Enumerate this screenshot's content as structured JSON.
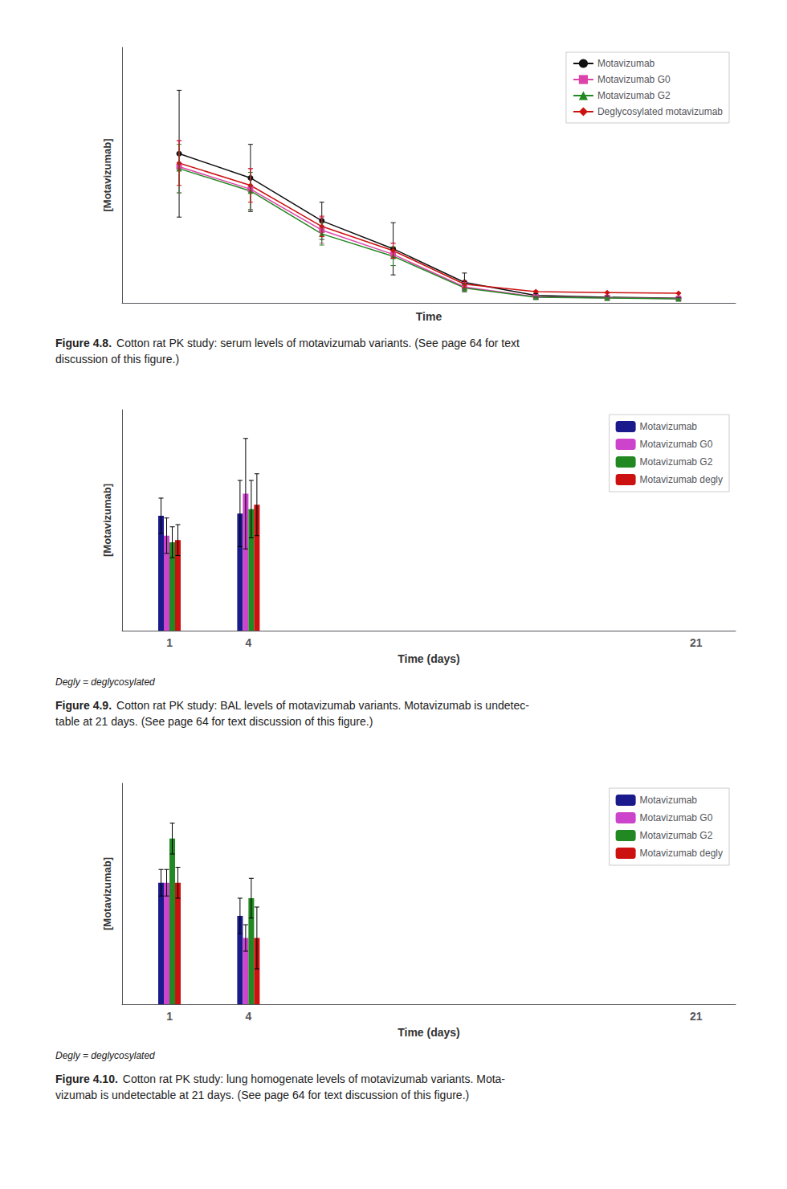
{
  "chart_data": [
    {
      "type": "line",
      "title": "Figure 4.8.",
      "subtitle": "Cotton rat PK study: serum levels of motavizumab variants. (See page 64 for text\ndiscussion of this figure.)",
      "x_label": "Time",
      "y_label": "[Motavizumab]",
      "x": [
        1,
        2,
        3,
        4,
        5,
        6,
        7,
        8
      ],
      "series": [
        {
          "name": "Motavizumab",
          "color": "#111111",
          "marker": "circle",
          "values": [
            0.78,
            0.65,
            0.42,
            0.27,
            0.09,
            0.02,
            0.01,
            0.005
          ],
          "errors": [
            0.34,
            0.18,
            0.1,
            0.14,
            0.05,
            0.01,
            0.005,
            0.002
          ]
        },
        {
          "name": "Motavizumab G0",
          "color": "#dd44aa",
          "marker": "square",
          "values": [
            0.71,
            0.59,
            0.37,
            0.24,
            0.065,
            0.012,
            0.007,
            0.003
          ],
          "errors": [
            0.14,
            0.11,
            0.07,
            0.06,
            0.025,
            0.007,
            0.003,
            0.001
          ]
        },
        {
          "name": "Motavizumab G2",
          "color": "#228822",
          "marker": "triangle",
          "values": [
            0.7,
            0.58,
            0.35,
            0.23,
            0.06,
            0.01,
            0.006,
            0.002
          ],
          "errors": [
            0.13,
            0.1,
            0.06,
            0.05,
            0.02,
            0.005,
            0.002,
            0.001
          ]
        },
        {
          "name": "Deglycosylated motavizumab",
          "color": "#cc1111",
          "marker": "diamond",
          "values": [
            0.73,
            0.61,
            0.39,
            0.26,
            0.08,
            0.04,
            0.035,
            0.032
          ],
          "errors": [
            0.12,
            0.09,
            0.055,
            0.04,
            0.018,
            0.004,
            0.002,
            0.001
          ]
        }
      ],
      "xlim": [
        0.2,
        8.8
      ],
      "ylim": [
        -0.02,
        1.35
      ],
      "tick_labels": false,
      "grid": false,
      "legend": "upper right"
    },
    {
      "type": "bar",
      "title": "Figure 4.9.",
      "subtitle": "Cotton rat PK study: BAL levels of motavizumab variants. Motavizumab is undetec-\ntable at 21 days. (See page 64 for text discussion of this figure.)",
      "annotations": [
        "Degly = deglycosylated"
      ],
      "x_label": "Time (days)",
      "y_label": "[Motavizumab]",
      "x": [
        1,
        4,
        21
      ],
      "series": [
        {
          "name": "Motavizumab",
          "color": "#1a1a8c",
          "values": [
            0.52,
            0.53,
            0.0
          ],
          "errors": [
            0.08,
            0.15,
            0.0
          ]
        },
        {
          "name": "Motavizumab G0",
          "color": "#cc44cc",
          "values": [
            0.43,
            0.62,
            0.0
          ],
          "errors": [
            0.08,
            0.25,
            0.0
          ]
        },
        {
          "name": "Motavizumab G2",
          "color": "#228822",
          "values": [
            0.4,
            0.55,
            0.0
          ],
          "errors": [
            0.07,
            0.13,
            0.0
          ]
        },
        {
          "name": "Motavizumab degly",
          "color": "#cc1111",
          "values": [
            0.41,
            0.57,
            0.0
          ],
          "errors": [
            0.07,
            0.14,
            0.0
          ]
        }
      ],
      "xlim": [
        -0.8,
        22.5
      ],
      "xticks": [
        1,
        4,
        21
      ],
      "ylim": [
        0,
        1.0
      ],
      "tick_labels": "x",
      "grid": false,
      "legend": "upper right"
    },
    {
      "type": "bar",
      "title": "Figure 4.10.",
      "subtitle": "Cotton rat PK study: lung homogenate levels of motavizumab variants. Mota-\nvizumab is undetectable at 21 days. (See page 64 for text discussion of this figure.)",
      "annotations": [
        "Degly = deglycosylated"
      ],
      "x_label": "Time (days)",
      "y_label": "[Motavizumab]",
      "x": [
        1,
        4,
        21
      ],
      "series": [
        {
          "name": "Motavizumab",
          "color": "#1a1a8c",
          "values": [
            0.55,
            0.4,
            0.0
          ],
          "errors": [
            0.06,
            0.08,
            0.0
          ]
        },
        {
          "name": "Motavizumab G0",
          "color": "#cc44cc",
          "values": [
            0.55,
            0.3,
            0.0
          ],
          "errors": [
            0.06,
            0.06,
            0.0
          ]
        },
        {
          "name": "Motavizumab G2",
          "color": "#228822",
          "values": [
            0.75,
            0.48,
            0.0
          ],
          "errors": [
            0.07,
            0.09,
            0.0
          ]
        },
        {
          "name": "Motavizumab degly",
          "color": "#cc1111",
          "values": [
            0.55,
            0.3,
            0.0
          ],
          "errors": [
            0.07,
            0.14,
            0.0
          ]
        }
      ],
      "xlim": [
        -0.8,
        22.5
      ],
      "xticks": [
        1,
        4,
        21
      ],
      "ylim": [
        0,
        1.0
      ],
      "tick_labels": "x",
      "grid": false,
      "legend": "upper right"
    }
  ]
}
